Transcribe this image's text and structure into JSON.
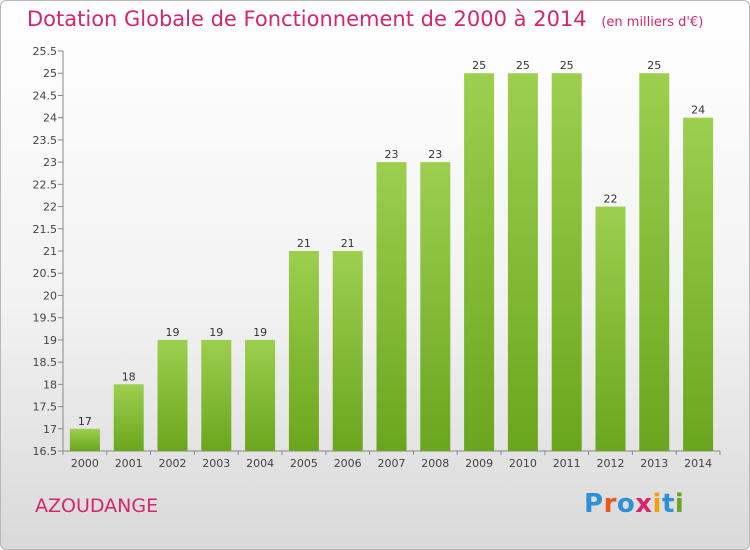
{
  "header": {
    "title": "Dotation Globale de Fonctionnement de 2000 à 2014",
    "unit": "(en milliers d'€)"
  },
  "footer": {
    "place": "AZOUDANGE",
    "logo_text": "Proxiti"
  },
  "colors": {
    "bar_top": "#9ccf4e",
    "bar_bottom": "#6aa61d",
    "title": "#d6246e",
    "logo": [
      "#2f8fd8",
      "#e8581a",
      "#2f8fd8",
      "#d6246e",
      "#f0a010",
      "#2f8fd8",
      "#6aa61d"
    ]
  },
  "chart_data": {
    "type": "bar",
    "title": "Dotation Globale de Fonctionnement de 2000 à 2014",
    "subtitle": "(en milliers d'€)",
    "categories": [
      "2000",
      "2001",
      "2002",
      "2003",
      "2004",
      "2005",
      "2006",
      "2007",
      "2008",
      "2009",
      "2010",
      "2011",
      "2012",
      "2013",
      "2014"
    ],
    "values": [
      17,
      18,
      19,
      19,
      19,
      21,
      21,
      23,
      23,
      25,
      25,
      25,
      22,
      25,
      24
    ],
    "ylim": [
      16.5,
      25.5
    ],
    "yticks": [
      16.5,
      17,
      17.5,
      18,
      18.5,
      19,
      19.5,
      20,
      20.5,
      21,
      21.5,
      22,
      22.5,
      23,
      23.5,
      24,
      24.5,
      25,
      25.5
    ],
    "grid": false,
    "xlabel": "",
    "ylabel": ""
  }
}
